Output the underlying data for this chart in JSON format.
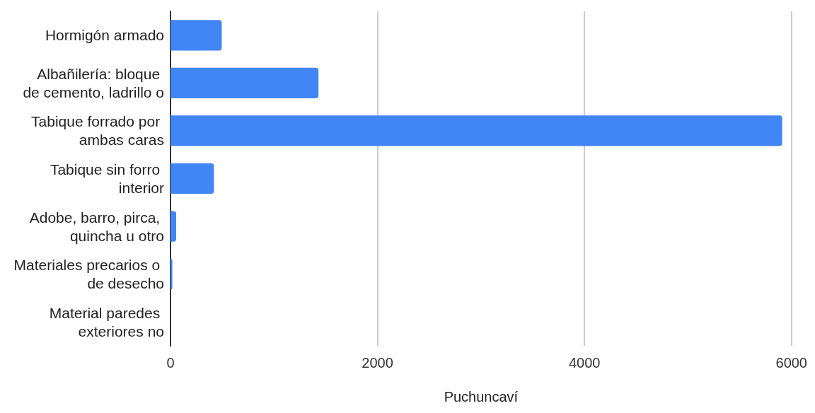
{
  "chart_data": {
    "type": "bar",
    "orientation": "horizontal",
    "xlabel": "Puchuncaví",
    "categories": [
      "Hormigón armado",
      "Albañilería: bloque de cemento, ladrillo o",
      "Tabique forrado por ambas caras",
      "Tabique sin forro interior",
      "Adobe, barro, pirca, quincha u otro",
      "Materiales precarios o de desecho",
      "Material paredes exteriores no"
    ],
    "values": [
      495,
      1430,
      5910,
      420,
      55,
      18,
      0
    ],
    "color": "#4285f4",
    "xlim": [
      0,
      6000
    ],
    "xticks": [
      0,
      2000,
      4000,
      6000
    ],
    "grid": "x"
  }
}
